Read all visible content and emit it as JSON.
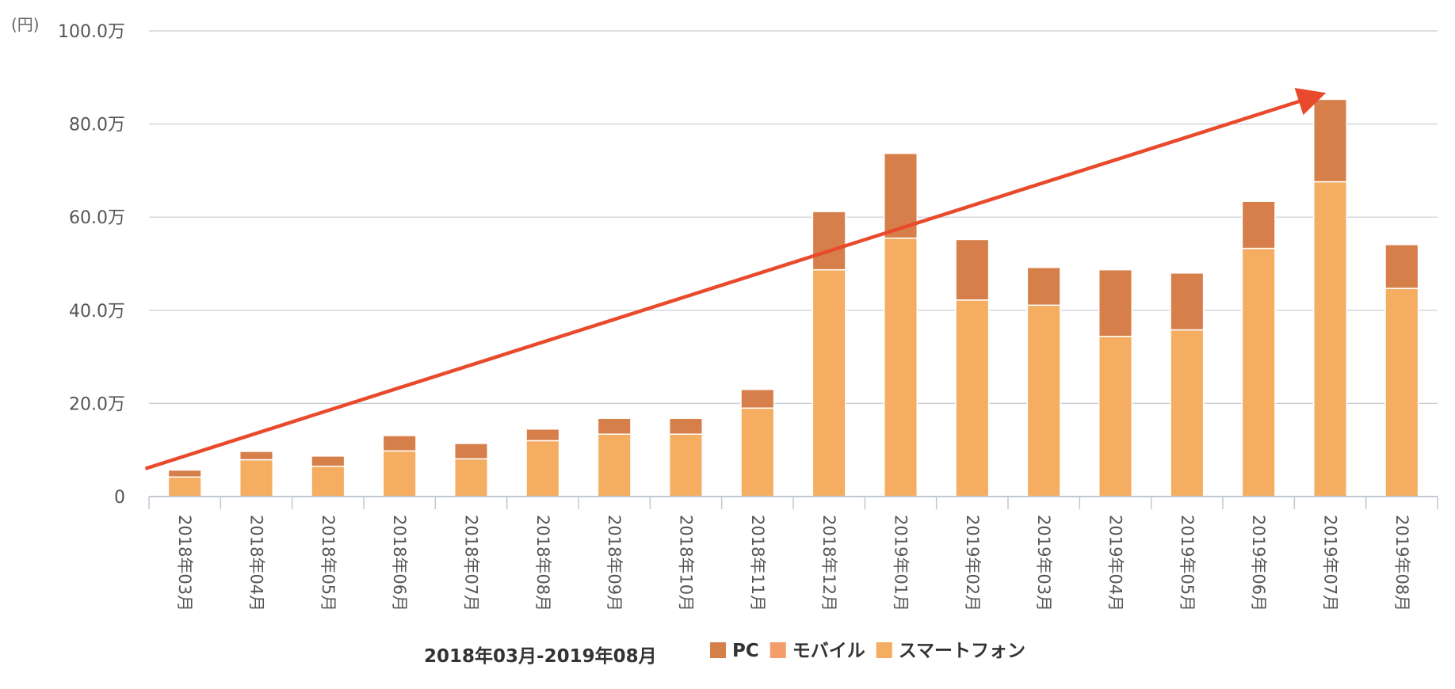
{
  "chart_data": {
    "type": "bar",
    "stacked": true,
    "y_unit_label": "(円)",
    "ylim": [
      0,
      1000000
    ],
    "yticks": [
      0,
      200000,
      400000,
      600000,
      800000,
      1000000
    ],
    "ytick_labels": [
      "0",
      "20.0万",
      "40.0万",
      "60.0万",
      "80.0万",
      "100.0万"
    ],
    "grid": true,
    "legend_position": "bottom",
    "period_label": "2018年03月-2019年08月",
    "categories": [
      "2018年03月",
      "2018年04月",
      "2018年05月",
      "2018年06月",
      "2018年07月",
      "2018年08月",
      "2018年09月",
      "2018年10月",
      "2018年11月",
      "2018年12月",
      "2019年01月",
      "2019年02月",
      "2019年03月",
      "2019年04月",
      "2019年05月",
      "2019年06月",
      "2019年07月",
      "2019年08月"
    ],
    "series": [
      {
        "name": "PC",
        "color": "#d67f4b",
        "values": [
          15000,
          18000,
          22000,
          33000,
          33000,
          25000,
          34000,
          34000,
          40000,
          125000,
          182000,
          130000,
          81000,
          143000,
          122000,
          101000,
          177000,
          94000
        ]
      },
      {
        "name": "モバイル",
        "color": "#f59d6a",
        "values": [
          0,
          0,
          0,
          0,
          0,
          0,
          0,
          0,
          0,
          0,
          0,
          0,
          0,
          0,
          0,
          0,
          0,
          0
        ]
      },
      {
        "name": "スマートフォン",
        "color": "#f5ad61",
        "values": [
          42000,
          79000,
          65000,
          98000,
          81000,
          120000,
          134000,
          134000,
          190000,
          487000,
          555000,
          422000,
          411000,
          344000,
          358000,
          533000,
          676000,
          447000
        ]
      }
    ],
    "trend_arrow": {
      "color": "#e84a2b",
      "from": {
        "category_index": -0.55,
        "y": 60000
      },
      "to": {
        "category_index": 15.8,
        "y": 860000
      }
    }
  }
}
